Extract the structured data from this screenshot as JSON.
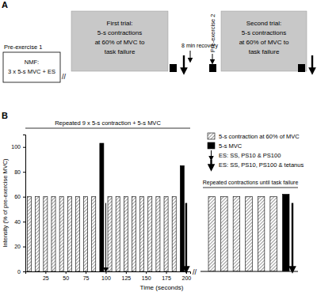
{
  "panel_a": {
    "label": "A",
    "pre_exercise_1": "Pre-exercise 1",
    "nmf": [
      "NMF:",
      "3 x 5-s MVC + ES"
    ],
    "first_trial": [
      "First trial:",
      "5-s contractions",
      "at 60% of MVC to",
      "task failure"
    ],
    "recovery": "8 min recovery",
    "pre_exercise_2": "Pre-exercise 2",
    "second_trial": [
      "Second trial:",
      "5-s contractions",
      "at 60% of MVC to",
      "task failure"
    ]
  },
  "panel_b": {
    "label": "B"
  },
  "break_mark": "//",
  "chart_data": [
    {
      "type": "bar",
      "x_label": "Time (seconds)",
      "y_label": "Intensity (% of pre-exercise MVC)",
      "x": [
        5,
        15,
        25,
        35,
        45,
        55,
        65,
        75,
        85,
        95,
        105,
        115,
        125,
        135,
        145,
        155,
        165,
        175,
        185,
        195
      ],
      "series": [
        {
          "name": "5-s contraction at 60% of MVC",
          "color": "#555555",
          "values": [
            60,
            60,
            60,
            60,
            60,
            60,
            60,
            60,
            60,
            null,
            60,
            60,
            60,
            60,
            60,
            60,
            60,
            60,
            60,
            null
          ]
        },
        {
          "name": "5-s MVC",
          "color": "#000000",
          "values": [
            null,
            null,
            null,
            null,
            null,
            null,
            null,
            null,
            null,
            103,
            null,
            null,
            null,
            null,
            null,
            null,
            null,
            null,
            null,
            85
          ]
        }
      ],
      "xlim": [
        0,
        205
      ],
      "xticks": [
        25,
        50,
        75,
        100,
        125,
        150,
        175,
        200
      ],
      "ylim": [
        0,
        110
      ],
      "yticks": [
        0,
        20,
        40,
        60,
        80,
        100
      ],
      "legend": "upper right",
      "annotations": [
        "Repeated 9 x 5-s contraction + 5-s MVC"
      ],
      "arrows": [
        {
          "x": 100,
          "line_style": "thin",
          "label": "ES: SS, PS10 & PS100"
        },
        {
          "x": 200,
          "line_style": "thick",
          "label": "ES: SS, PS10, PS100 & tetanus"
        }
      ]
    },
    {
      "type": "bar",
      "categories": [
        null,
        null,
        null,
        null,
        null,
        null,
        null
      ],
      "series": [
        {
          "color": "#555555",
          "values": [
            60,
            60,
            60,
            60,
            60,
            60,
            null
          ]
        },
        {
          "color": "#000000",
          "values": [
            null,
            null,
            null,
            null,
            null,
            null,
            62
          ]
        }
      ],
      "ylim": [
        0,
        110
      ],
      "tick_labels": false,
      "annotations": [
        "Repeated contractions until task failure"
      ],
      "end_arrow": {
        "category": 6,
        "line_style": "thick"
      }
    }
  ]
}
